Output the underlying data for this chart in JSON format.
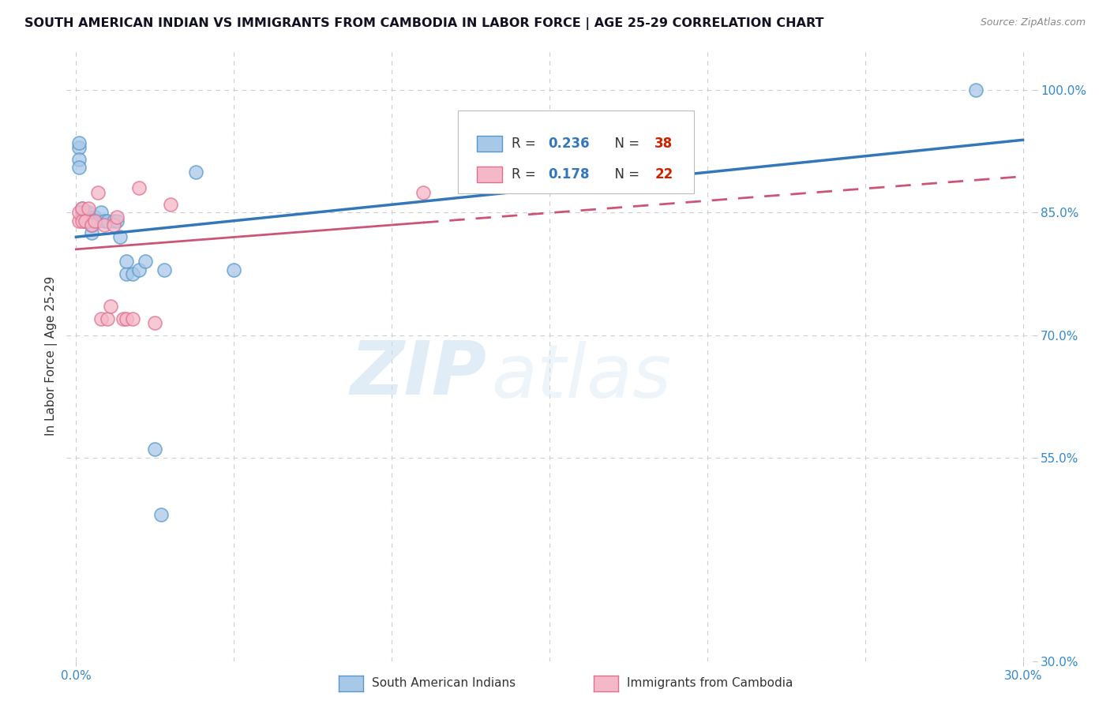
{
  "title": "SOUTH AMERICAN INDIAN VS IMMIGRANTS FROM CAMBODIA IN LABOR FORCE | AGE 25-29 CORRELATION CHART",
  "source": "Source: ZipAtlas.com",
  "ylabel": "In Labor Force | Age 25-29",
  "x_min": 0.0,
  "x_max": 0.3,
  "y_min": 0.3,
  "y_max": 1.05,
  "x_ticks": [
    0.0,
    0.05,
    0.1,
    0.15,
    0.2,
    0.25,
    0.3
  ],
  "y_tick_labels_right": [
    "30.0%",
    "55.0%",
    "70.0%",
    "85.0%",
    "100.0%"
  ],
  "y_tick_vals_right": [
    0.3,
    0.55,
    0.7,
    0.85,
    1.0
  ],
  "blue_R": 0.236,
  "blue_N": 38,
  "pink_R": 0.178,
  "pink_N": 22,
  "blue_scatter_color": "#a8c8e8",
  "blue_scatter_edge": "#5599cc",
  "pink_scatter_color": "#f5b8c8",
  "pink_scatter_edge": "#e07090",
  "blue_line_color": "#3377bb",
  "pink_line_color": "#cc5577",
  "legend_R_color": "#3377bb",
  "legend_N_color": "#cc2200",
  "blue_x": [
    0.001,
    0.001,
    0.001,
    0.001,
    0.002,
    0.002,
    0.002,
    0.003,
    0.003,
    0.003,
    0.003,
    0.004,
    0.004,
    0.005,
    0.005,
    0.006,
    0.006,
    0.007,
    0.008,
    0.009,
    0.01,
    0.012,
    0.013,
    0.014,
    0.016,
    0.016,
    0.018,
    0.02,
    0.022,
    0.025,
    0.027,
    0.028,
    0.038,
    0.05,
    0.19,
    0.285,
    0.003,
    0.004
  ],
  "blue_y": [
    0.93,
    0.935,
    0.915,
    0.905,
    0.845,
    0.85,
    0.855,
    0.84,
    0.85,
    0.85,
    0.84,
    0.84,
    0.85,
    0.825,
    0.835,
    0.84,
    0.845,
    0.84,
    0.85,
    0.84,
    0.84,
    0.84,
    0.84,
    0.82,
    0.775,
    0.79,
    0.775,
    0.78,
    0.79,
    0.56,
    0.48,
    0.78,
    0.9,
    0.78,
    0.9,
    1.0,
    0.84,
    0.84
  ],
  "pink_x": [
    0.001,
    0.001,
    0.002,
    0.002,
    0.003,
    0.004,
    0.005,
    0.006,
    0.007,
    0.008,
    0.009,
    0.01,
    0.011,
    0.012,
    0.013,
    0.015,
    0.016,
    0.018,
    0.02,
    0.025,
    0.03,
    0.11
  ],
  "pink_y": [
    0.84,
    0.85,
    0.84,
    0.855,
    0.84,
    0.855,
    0.835,
    0.84,
    0.875,
    0.72,
    0.835,
    0.72,
    0.735,
    0.835,
    0.845,
    0.72,
    0.72,
    0.72,
    0.88,
    0.715,
    0.86,
    0.875
  ],
  "watermark_ZIP": "ZIP",
  "watermark_atlas": "atlas",
  "background_color": "#ffffff",
  "grid_color": "#cccccc",
  "grid_style": "--"
}
